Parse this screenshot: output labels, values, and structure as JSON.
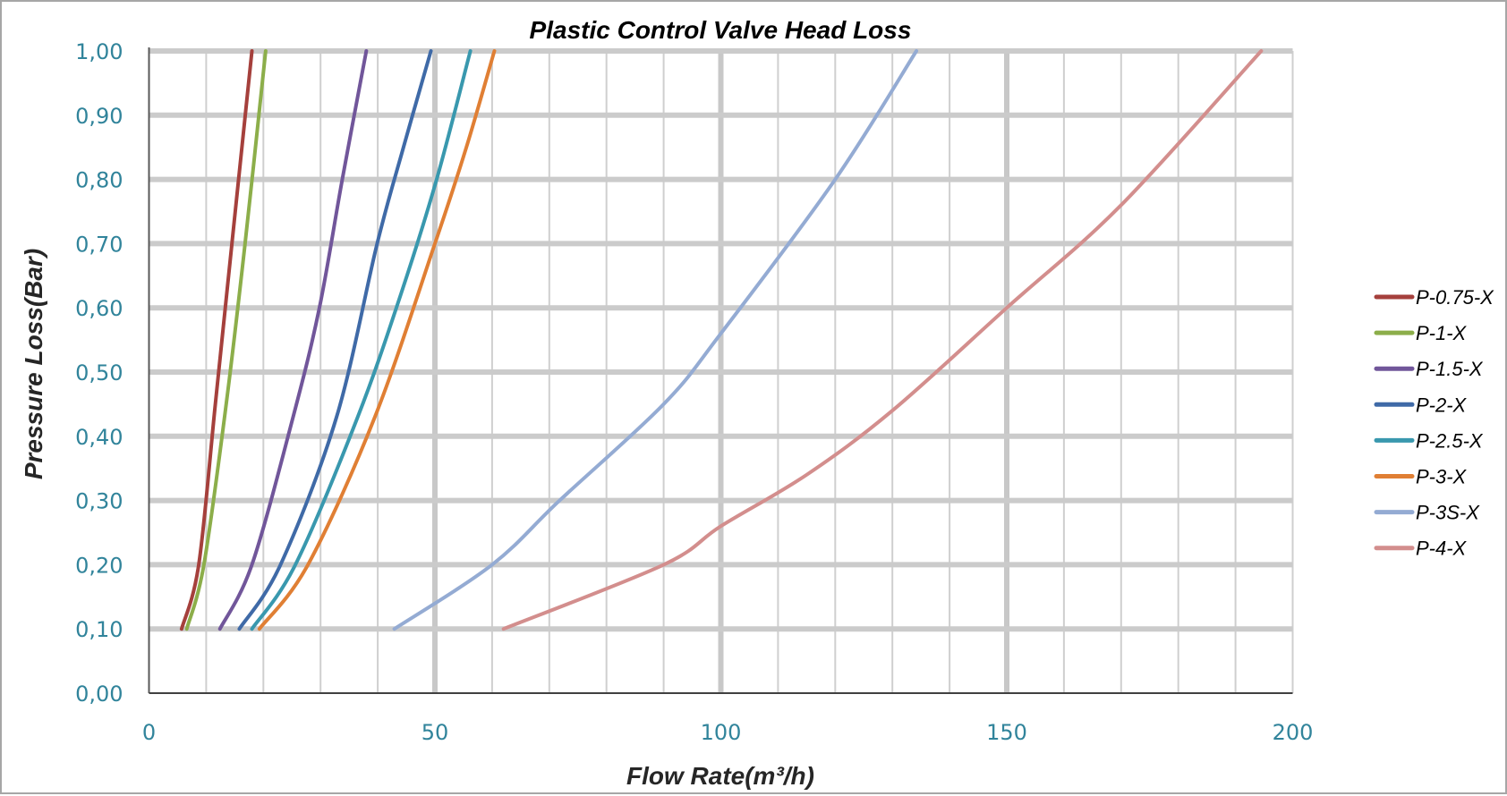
{
  "chart_data": {
    "type": "line",
    "title": "Plastic Control Valve Head Loss",
    "xlabel": "Flow Rate(m³/h)",
    "ylabel": "Pressure Loss(Bar)",
    "xlim": [
      0,
      200
    ],
    "ylim": [
      0,
      1.0
    ],
    "x_ticks": [
      "0",
      "50",
      "100",
      "150",
      "200"
    ],
    "x_tick_values": [
      0,
      50,
      100,
      150,
      200
    ],
    "y_ticks": [
      "0,00",
      "0,10",
      "0,20",
      "0,30",
      "0,40",
      "0,50",
      "0,60",
      "0,70",
      "0,80",
      "0,90",
      "1,00"
    ],
    "y_tick_values": [
      0,
      0.1,
      0.2,
      0.3,
      0.4,
      0.5,
      0.6,
      0.7,
      0.8,
      0.9,
      1.0
    ],
    "grid": {
      "x_minor_step": 10,
      "x_major_step": 50,
      "y_step": 0.1,
      "on": true
    },
    "legend_position": "right",
    "series": [
      {
        "name": "P-0.75-X",
        "color": "#a5403c",
        "points": [
          [
            5.7,
            0.1
          ],
          [
            8.7,
            0.2
          ],
          [
            11.6,
            0.45
          ],
          [
            14.5,
            0.7
          ],
          [
            18,
            1.0
          ]
        ]
      },
      {
        "name": "P-1-X",
        "color": "#8cae4a",
        "points": [
          [
            6.6,
            0.1
          ],
          [
            9.6,
            0.2
          ],
          [
            13.5,
            0.45
          ],
          [
            16.8,
            0.7
          ],
          [
            20.4,
            1.0
          ]
        ]
      },
      {
        "name": "P-1.5-X",
        "color": "#71569a",
        "points": [
          [
            12.4,
            0.1
          ],
          [
            18,
            0.2
          ],
          [
            25.2,
            0.43
          ],
          [
            29.8,
            0.6
          ],
          [
            33.8,
            0.8
          ],
          [
            38,
            1.0
          ]
        ]
      },
      {
        "name": "P-2-X",
        "color": "#3f6aa7",
        "points": [
          [
            15.8,
            0.1
          ],
          [
            23,
            0.2
          ],
          [
            32.8,
            0.43
          ],
          [
            39.9,
            0.7
          ],
          [
            44.5,
            0.85
          ],
          [
            49.3,
            1.0
          ]
        ]
      },
      {
        "name": "P-2.5-X",
        "color": "#3998ae",
        "points": [
          [
            18,
            0.1
          ],
          [
            25.6,
            0.2
          ],
          [
            36.5,
            0.43
          ],
          [
            44,
            0.62
          ],
          [
            50.3,
            0.8
          ],
          [
            56.2,
            1.0
          ]
        ]
      },
      {
        "name": "P-3-X",
        "color": "#e07f34",
        "points": [
          [
            19.3,
            0.1
          ],
          [
            27.8,
            0.2
          ],
          [
            39.5,
            0.43
          ],
          [
            50,
            0.7
          ],
          [
            55.5,
            0.85
          ],
          [
            60.4,
            1.0
          ]
        ]
      },
      {
        "name": "P-3S-X",
        "color": "#94abd3",
        "points": [
          [
            42.9,
            0.1
          ],
          [
            60,
            0.2
          ],
          [
            71.8,
            0.3
          ],
          [
            90,
            0.45
          ],
          [
            100,
            0.56
          ],
          [
            120,
            0.8
          ],
          [
            134.2,
            1.0
          ]
        ]
      },
      {
        "name": "P-4-X",
        "color": "#d38e8d",
        "points": [
          [
            62,
            0.1
          ],
          [
            90,
            0.2
          ],
          [
            100,
            0.26
          ],
          [
            115,
            0.34
          ],
          [
            130,
            0.44
          ],
          [
            150,
            0.6
          ],
          [
            170,
            0.76
          ],
          [
            194.5,
            1.0
          ]
        ]
      }
    ]
  }
}
